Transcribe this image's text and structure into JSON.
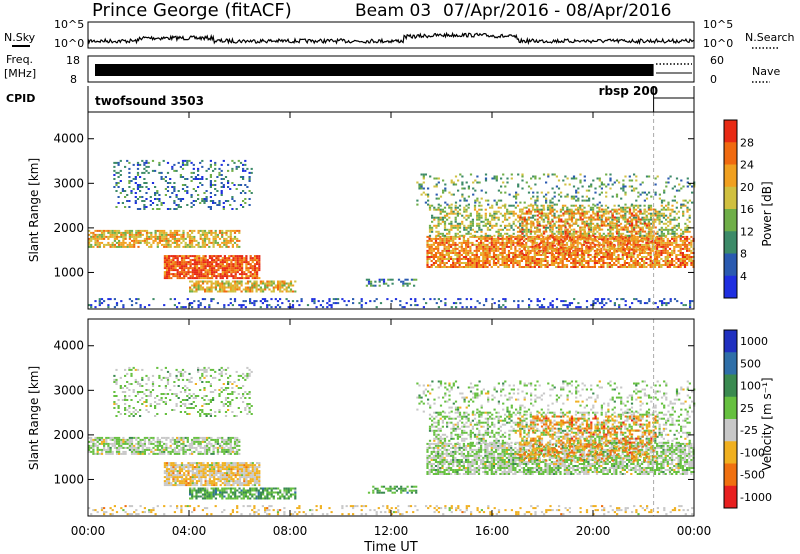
{
  "header": {
    "station": "Prince George (fitACF)",
    "beam": "Beam 03",
    "dates": "07/Apr/2016 - 08/Apr/2016"
  },
  "noise": {
    "left_label": "N.Sky",
    "right_label": "N.Search",
    "left_ticks": [
      "10^5",
      "10^0"
    ],
    "right_ticks": [
      "10^5",
      "10^0"
    ],
    "sky_color": "#000000"
  },
  "freq": {
    "left_label_line1": "Freq.",
    "left_label_line2": "[MHz]",
    "left_ticks": [
      "18",
      "8"
    ],
    "right_ticks": [
      "60",
      "0"
    ],
    "right_label": "Nave"
  },
  "cpid": {
    "label": "CPID",
    "segments": [
      {
        "name": "twofsound 3503",
        "start_h": 0,
        "end_h": 22.4
      },
      {
        "name": "rbsp 200",
        "start_h": 22.4,
        "end_h": 24
      }
    ]
  },
  "chart_data": [
    {
      "type": "heatmap",
      "name": "power",
      "ylabel": "Slant Range [km]",
      "ylim": [
        180,
        4600
      ],
      "yticks": [
        1000,
        2000,
        3000,
        4000
      ],
      "colorbar_label": "Power [dB]",
      "colorbar_ticks": [
        "4",
        "8",
        "12",
        "16",
        "20",
        "24",
        "28"
      ],
      "colors": [
        "#1f2fe0",
        "#2a5ab0",
        "#3c8a68",
        "#6fae48",
        "#d0c040",
        "#f0a020",
        "#f06a10",
        "#e82a14"
      ]
    },
    {
      "type": "heatmap",
      "name": "velocity",
      "ylabel": "Slant Range [km]",
      "ylim": [
        180,
        4600
      ],
      "yticks": [
        1000,
        2000,
        3000,
        4000
      ],
      "colorbar_label": "Velocity [m s⁻¹]",
      "colorbar_ticks": [
        "1000",
        "500",
        "100",
        "25",
        "-25",
        "-100",
        "-500",
        "-1000"
      ],
      "colors": [
        "#2030c0",
        "#2f6fa8",
        "#3a8a50",
        "#66c040",
        "#c8c8c8",
        "#f0b020",
        "#f07010",
        "#e82020"
      ]
    }
  ],
  "xaxis": {
    "label": "Time UT",
    "range_h": [
      0,
      24
    ],
    "ticks": [
      "00:00",
      "04:00",
      "08:00",
      "12:00",
      "16:00",
      "20:00",
      "00:00"
    ]
  }
}
